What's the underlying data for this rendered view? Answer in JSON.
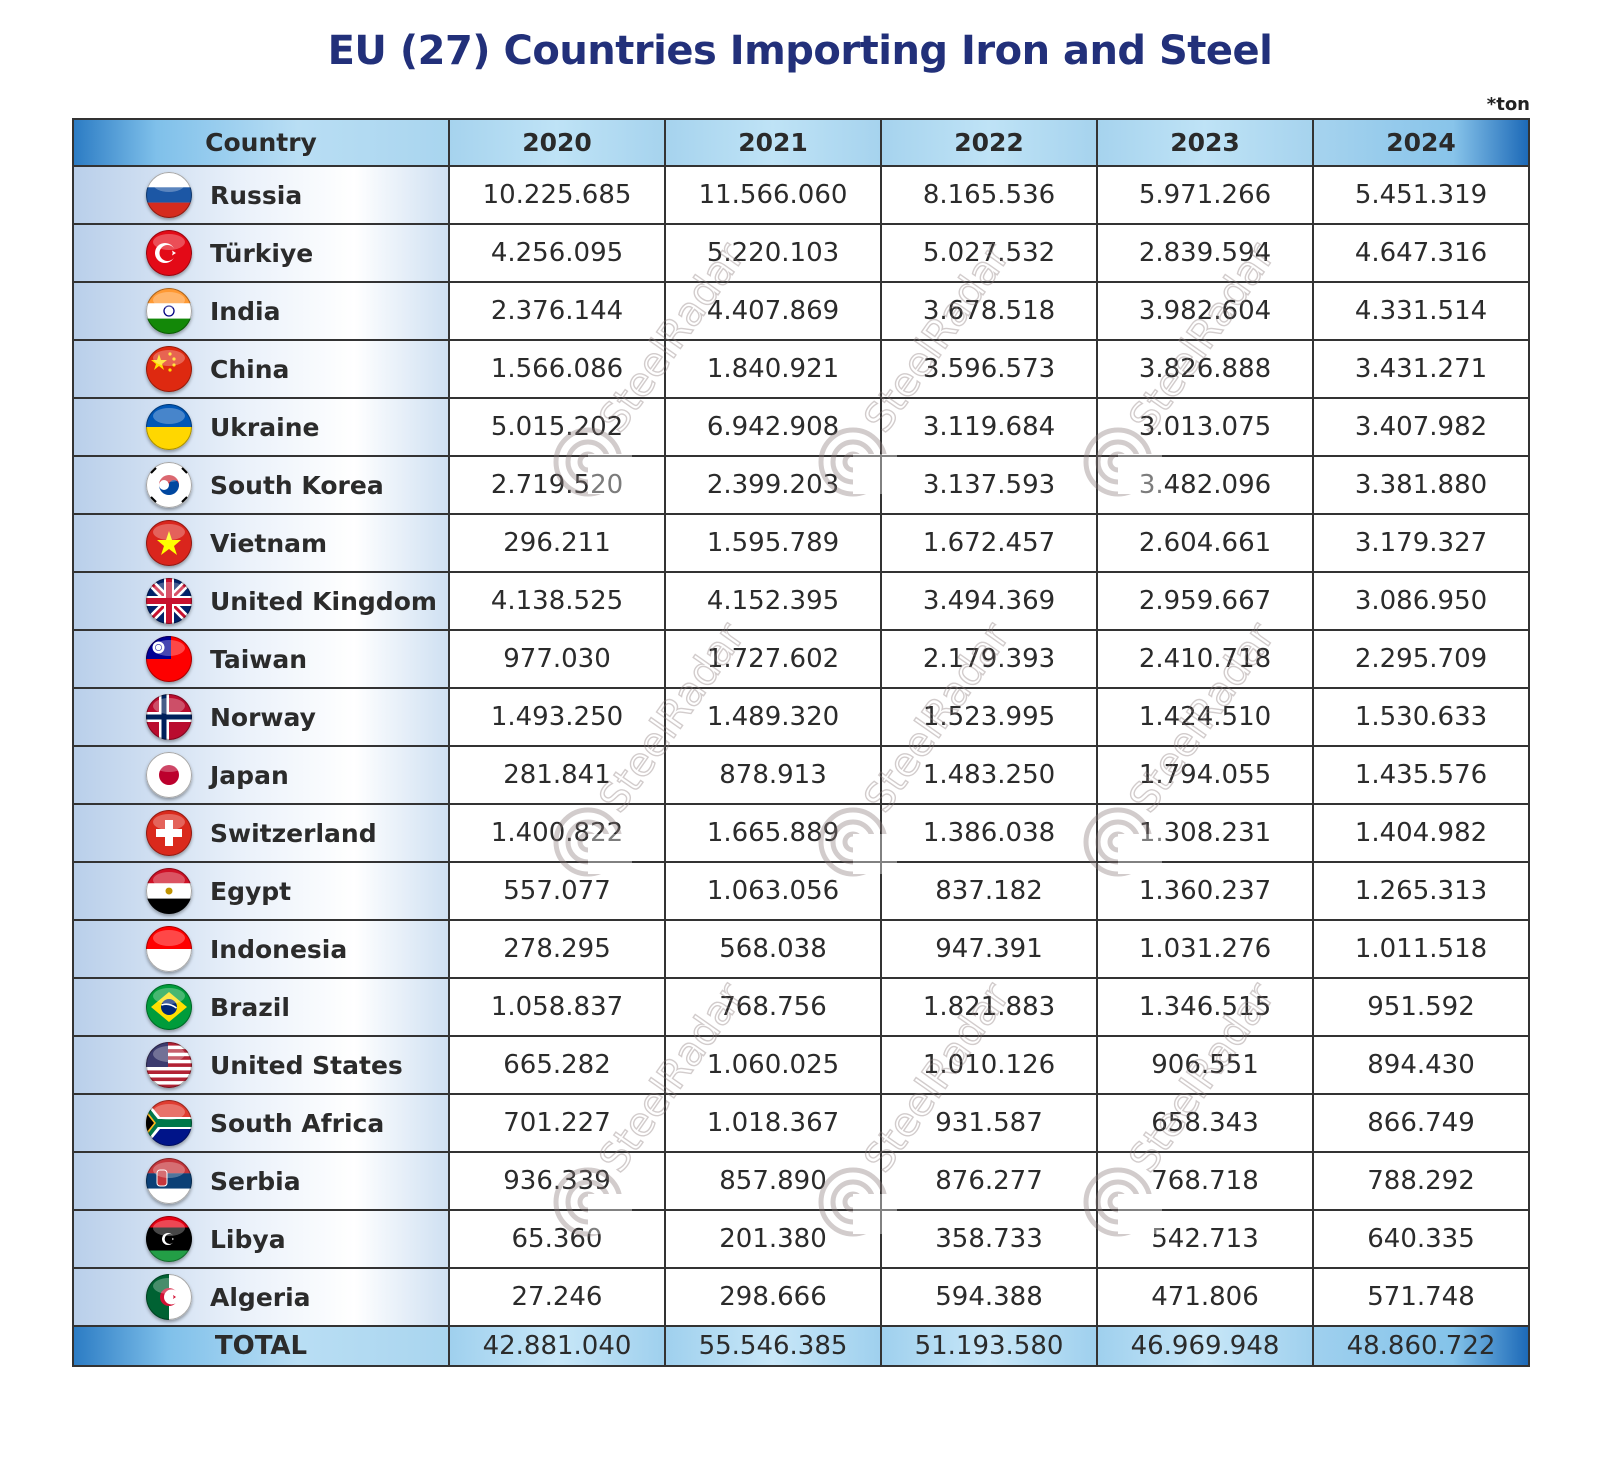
{
  "title": "EU (27) Countries Importing Iron and Steel",
  "unit_note": "*ton",
  "watermark": "SteelRadar",
  "header": {
    "country": "Country",
    "years": [
      "2020",
      "2021",
      "2022",
      "2023",
      "2024"
    ]
  },
  "rows": [
    {
      "country": "Russia",
      "flag": "russia-flag",
      "values": [
        "10.225.685",
        "11.566.060",
        "8.165.536",
        "5.971.266",
        "5.451.319"
      ]
    },
    {
      "country": "Türkiye",
      "flag": "turkiye-flag",
      "values": [
        "4.256.095",
        "5.220.103",
        "5.027.532",
        "2.839.594",
        "4.647.316"
      ]
    },
    {
      "country": "India",
      "flag": "india-flag",
      "values": [
        "2.376.144",
        "4.407.869",
        "3.678.518",
        "3.982.604",
        "4.331.514"
      ]
    },
    {
      "country": "China",
      "flag": "china-flag",
      "values": [
        "1.566.086",
        "1.840.921",
        "3.596.573",
        "3.826.888",
        "3.431.271"
      ]
    },
    {
      "country": "Ukraine",
      "flag": "ukraine-flag",
      "values": [
        "5.015.202",
        "6.942.908",
        "3.119.684",
        "3.013.075",
        "3.407.982"
      ]
    },
    {
      "country": "South Korea",
      "flag": "south-korea-flag",
      "values": [
        "2.719.520",
        "2.399.203",
        "3.137.593",
        "3.482.096",
        "3.381.880"
      ]
    },
    {
      "country": "Vietnam",
      "flag": "vietnam-flag",
      "values": [
        "296.211",
        "1.595.789",
        "1.672.457",
        "2.604.661",
        "3.179.327"
      ]
    },
    {
      "country": "United Kingdom",
      "flag": "united-kingdom-flag",
      "values": [
        "4.138.525",
        "4.152.395",
        "3.494.369",
        "2.959.667",
        "3.086.950"
      ]
    },
    {
      "country": "Taiwan",
      "flag": "taiwan-flag",
      "values": [
        "977.030",
        "1.727.602",
        "2.179.393",
        "2.410.718",
        "2.295.709"
      ]
    },
    {
      "country": "Norway",
      "flag": "norway-flag",
      "values": [
        "1.493.250",
        "1.489.320",
        "1.523.995",
        "1.424.510",
        "1.530.633"
      ]
    },
    {
      "country": "Japan",
      "flag": "japan-flag",
      "values": [
        "281.841",
        "878.913",
        "1.483.250",
        "1.794.055",
        "1.435.576"
      ]
    },
    {
      "country": "Switzerland",
      "flag": "switzerland-flag",
      "values": [
        "1.400.822",
        "1.665.889",
        "1.386.038",
        "1.308.231",
        "1.404.982"
      ]
    },
    {
      "country": "Egypt",
      "flag": "egypt-flag",
      "values": [
        "557.077",
        "1.063.056",
        "837.182",
        "1.360.237",
        "1.265.313"
      ]
    },
    {
      "country": "Indonesia",
      "flag": "indonesia-flag",
      "values": [
        "278.295",
        "568.038",
        "947.391",
        "1.031.276",
        "1.011.518"
      ]
    },
    {
      "country": "Brazil",
      "flag": "brazil-flag",
      "values": [
        "1.058.837",
        "768.756",
        "1.821.883",
        "1.346.515",
        "951.592"
      ]
    },
    {
      "country": "United States",
      "flag": "united-states-flag",
      "values": [
        "665.282",
        "1.060.025",
        "1.010.126",
        "906.551",
        "894.430"
      ]
    },
    {
      "country": "South Africa",
      "flag": "south-africa-flag",
      "values": [
        "701.227",
        "1.018.367",
        "931.587",
        "658.343",
        "866.749"
      ]
    },
    {
      "country": "Serbia",
      "flag": "serbia-flag",
      "values": [
        "936.339",
        "857.890",
        "876.277",
        "768.718",
        "788.292"
      ]
    },
    {
      "country": "Libya",
      "flag": "libya-flag",
      "values": [
        "65.360",
        "201.380",
        "358.733",
        "542.713",
        "640.335"
      ]
    },
    {
      "country": "Algeria",
      "flag": "algeria-flag",
      "values": [
        "27.246",
        "298.666",
        "594.388",
        "471.806",
        "571.748"
      ]
    }
  ],
  "total": {
    "label": "TOTAL",
    "values": [
      "42.881.040",
      "55.546.385",
      "51.193.580",
      "46.969.948",
      "48.860.722"
    ]
  },
  "colors": {
    "title": "#22307a",
    "header_gradient_edge": "#1d6ab8",
    "header_fill": "#a6d3ee",
    "border": "#333333"
  },
  "chart_data": {
    "type": "table",
    "title": "EU (27) Countries Importing Iron and Steel",
    "unit": "*ton",
    "columns": [
      "Country",
      "2020",
      "2021",
      "2022",
      "2023",
      "2024"
    ],
    "rows": [
      [
        "Russia",
        10225685,
        11566060,
        8165536,
        5971266,
        5451319
      ],
      [
        "Türkiye",
        4256095,
        5220103,
        5027532,
        2839594,
        4647316
      ],
      [
        "India",
        2376144,
        4407869,
        3678518,
        3982604,
        4331514
      ],
      [
        "China",
        1566086,
        1840921,
        3596573,
        3826888,
        3431271
      ],
      [
        "Ukraine",
        5015202,
        6942908,
        3119684,
        3013075,
        3407982
      ],
      [
        "South Korea",
        2719520,
        2399203,
        3137593,
        3482096,
        3381880
      ],
      [
        "Vietnam",
        296211,
        1595789,
        1672457,
        2604661,
        3179327
      ],
      [
        "United Kingdom",
        4138525,
        4152395,
        3494369,
        2959667,
        3086950
      ],
      [
        "Taiwan",
        977030,
        1727602,
        2179393,
        2410718,
        2295709
      ],
      [
        "Norway",
        1493250,
        1489320,
        1523995,
        1424510,
        1530633
      ],
      [
        "Japan",
        281841,
        878913,
        1483250,
        1794055,
        1435576
      ],
      [
        "Switzerland",
        1400822,
        1665889,
        1386038,
        1308231,
        1404982
      ],
      [
        "Egypt",
        557077,
        1063056,
        837182,
        1360237,
        1265313
      ],
      [
        "Indonesia",
        278295,
        568038,
        947391,
        1031276,
        1011518
      ],
      [
        "Brazil",
        1058837,
        768756,
        1821883,
        1346515,
        951592
      ],
      [
        "United States",
        665282,
        1060025,
        1010126,
        906551,
        894430
      ],
      [
        "South Africa",
        701227,
        1018367,
        931587,
        658343,
        866749
      ],
      [
        "Serbia",
        936339,
        857890,
        876277,
        768718,
        788292
      ],
      [
        "Libya",
        65360,
        201380,
        358733,
        542713,
        640335
      ],
      [
        "Algeria",
        27246,
        298666,
        594388,
        471806,
        571748
      ]
    ],
    "total": [
      "TOTAL",
      42881040,
      55546385,
      51193580,
      46969948,
      48860722
    ]
  }
}
